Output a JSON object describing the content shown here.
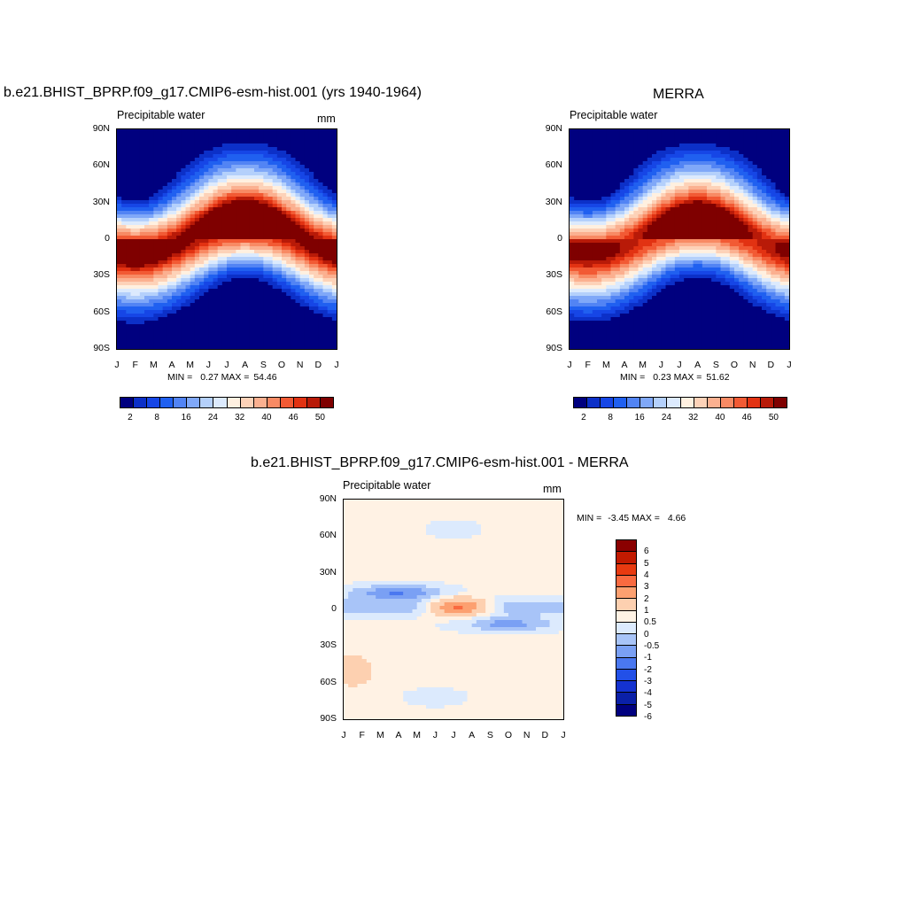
{
  "panels": [
    {
      "title": "b.e21.BHIST_BPRP.f09_g17.CMIP6-esm-hist.001 (yrs 1940-1964)",
      "subtitle": "Precipitable water",
      "units": "mm",
      "min_label": "MIN =",
      "min_value": "0.27",
      "max_label": "MAX =",
      "max_value": "54.46"
    },
    {
      "title": "MERRA",
      "subtitle": "Precipitable water",
      "units": "",
      "min_label": "MIN =",
      "min_value": "0.23",
      "max_label": "MAX =",
      "max_value": "51.62"
    },
    {
      "title": "b.e21.BHIST_BPRP.f09_g17.CMIP6-esm-hist.001 - MERRA",
      "subtitle": "Precipitable water",
      "units": "mm",
      "min_label": "MIN =",
      "min_value": "-3.45",
      "max_label": "MAX =",
      "max_value": "4.66"
    }
  ],
  "y_ticks": [
    "90N",
    "60N",
    "30N",
    "0",
    "30S",
    "60S",
    "90S"
  ],
  "x_ticks": [
    "J",
    "F",
    "M",
    "A",
    "M",
    "J",
    "J",
    "A",
    "S",
    "O",
    "N",
    "D",
    "J"
  ],
  "colorbar_main": {
    "colors": [
      "#00007f",
      "#0c30c8",
      "#1646e6",
      "#2060f0",
      "#5284f4",
      "#80a8f8",
      "#b4d0fb",
      "#dceafd",
      "#fff0e0",
      "#fdd2b8",
      "#fbb090",
      "#f88a64",
      "#f25a34",
      "#e23212",
      "#b81a08",
      "#7f0000"
    ],
    "labels": [
      "2",
      "8",
      "16",
      "24",
      "32",
      "40",
      "46",
      "50"
    ]
  },
  "colorbar_diff": {
    "colors": [
      "#8a0000",
      "#c21a00",
      "#e83a10",
      "#f96a40",
      "#fca070",
      "#fdd0b0",
      "#fff2e4",
      "#dceafd",
      "#a8c4f8",
      "#7aa0f4",
      "#4a78f0",
      "#2250e8",
      "#1432d0",
      "#0a20a8",
      "#00007f"
    ],
    "labels": [
      "6",
      "5",
      "4",
      "3",
      "2",
      "1",
      "0.5",
      "0",
      "-0.5",
      "-1",
      "-2",
      "-3",
      "-4",
      "-5",
      "-6"
    ]
  },
  "chart_data": [
    {
      "type": "heatmap",
      "title": "b.e21.BHIST_BPRP.f09_g17.CMIP6-esm-hist.001 (yrs 1940-1964)",
      "subtitle": "Precipitable water",
      "units": "mm",
      "x": [
        "J",
        "F",
        "M",
        "A",
        "M",
        "J",
        "J",
        "A",
        "S",
        "O",
        "N",
        "D",
        "J"
      ],
      "y": [
        "90N",
        "60N",
        "30N",
        "0",
        "30S",
        "60S",
        "90S"
      ],
      "min": 0.27,
      "max": 54.46,
      "levels": [
        2,
        8,
        16,
        24,
        32,
        40,
        46,
        50
      ]
    },
    {
      "type": "heatmap",
      "title": "MERRA",
      "subtitle": "Precipitable water",
      "x": [
        "J",
        "F",
        "M",
        "A",
        "M",
        "J",
        "J",
        "A",
        "S",
        "O",
        "N",
        "D",
        "J"
      ],
      "y": [
        "90N",
        "60N",
        "30N",
        "0",
        "30S",
        "60S",
        "90S"
      ],
      "min": 0.23,
      "max": 51.62,
      "levels": [
        2,
        8,
        16,
        24,
        32,
        40,
        46,
        50
      ]
    },
    {
      "type": "heatmap",
      "title": "b.e21.BHIST_BPRP.f09_g17.CMIP6-esm-hist.001 - MERRA",
      "subtitle": "Precipitable water",
      "units": "mm",
      "x": [
        "J",
        "F",
        "M",
        "A",
        "M",
        "J",
        "J",
        "A",
        "S",
        "O",
        "N",
        "D",
        "J"
      ],
      "y": [
        "90N",
        "60N",
        "30N",
        "0",
        "30S",
        "60S",
        "90S"
      ],
      "min": -3.45,
      "max": 4.66,
      "levels": [
        6,
        5,
        4,
        3,
        2,
        1,
        0.5,
        0,
        -0.5,
        -1,
        -2,
        -3,
        -4,
        -5,
        -6
      ]
    }
  ]
}
